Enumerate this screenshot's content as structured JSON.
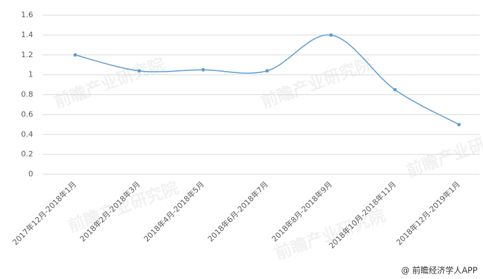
{
  "chart_data": {
    "type": "line",
    "categories": [
      "2017年12月-2018年1月",
      "2018年2月-2018年3月",
      "2018年4月-2018年5月",
      "2018年6月-2018年7月",
      "2018年8月-2018年9月",
      "2018年10月-2018年11月",
      "2018年12月-2019年1月"
    ],
    "values": [
      1.2,
      1.04,
      1.05,
      1.04,
      1.4,
      0.85,
      0.5
    ],
    "color": "#5b9bd5",
    "ylim": [
      0,
      1.6
    ],
    "yticks": [
      0,
      0.2,
      0.4,
      0.6,
      0.8,
      1,
      1.2,
      1.4,
      1.6
    ],
    "grid": true,
    "smooth": true,
    "watermark": "前瞻产业研究院",
    "source": "@ 前瞻经济学人APP"
  }
}
